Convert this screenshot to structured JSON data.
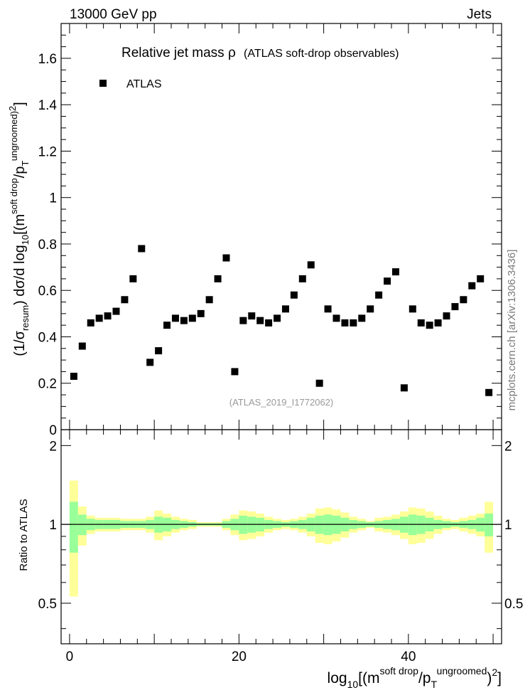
{
  "header": {
    "beam": "13000 GeV pp",
    "process": "Jets",
    "title_main": "Relative jet mass  ρ",
    "title_sub": "(ATLAS soft-drop observables)",
    "analysis_id": "(ATLAS_2019_I1772062)",
    "side_credit": "mcplots.cern.ch [arXiv:1306.3436]"
  },
  "chart_data": [
    {
      "type": "scatter",
      "title": "Relative jet mass  ρ (ATLAS soft-drop observables)",
      "legend": {
        "entries": [
          "ATLAS"
        ],
        "position": "top-left"
      },
      "xlim": [
        -1,
        51
      ],
      "ylim": [
        0,
        1.75
      ],
      "y_ticks": [
        0,
        0.2,
        0.4,
        0.6,
        0.8,
        1,
        1.2,
        1.4,
        1.6
      ],
      "y_tick_labels": [
        "0",
        "0.2",
        "0.4",
        "0.6",
        "0.8",
        "1",
        "1.2",
        "1.4",
        "1.6"
      ],
      "series": [
        {
          "name": "ATLAS",
          "marker": "square",
          "color": "#000000",
          "x": [
            0.5,
            1.5,
            2.5,
            3.5,
            4.5,
            5.5,
            6.5,
            7.5,
            8.5,
            9.5,
            10.5,
            11.5,
            12.5,
            13.5,
            14.5,
            15.5,
            16.5,
            17.5,
            18.5,
            19.5,
            20.5,
            21.5,
            22.5,
            23.5,
            24.5,
            25.5,
            26.5,
            27.5,
            28.5,
            29.5,
            30.5,
            31.5,
            32.5,
            33.5,
            34.5,
            35.5,
            36.5,
            37.5,
            38.5,
            39.5,
            40.5,
            41.5,
            42.5,
            43.5,
            44.5,
            45.5,
            46.5,
            47.5,
            48.5,
            49.5
          ],
          "y": [
            0.23,
            0.36,
            0.46,
            0.48,
            0.49,
            0.51,
            0.56,
            0.65,
            0.78,
            0.29,
            0.34,
            0.45,
            0.48,
            0.47,
            0.48,
            0.5,
            0.56,
            0.65,
            0.74,
            0.25,
            0.47,
            0.49,
            0.47,
            0.46,
            0.48,
            0.52,
            0.58,
            0.65,
            0.71,
            0.2,
            0.52,
            0.48,
            0.46,
            0.46,
            0.48,
            0.52,
            0.58,
            0.64,
            0.68,
            0.18,
            0.52,
            0.46,
            0.45,
            0.46,
            0.49,
            0.53,
            0.56,
            0.62,
            0.65,
            0.16
          ]
        }
      ]
    },
    {
      "type": "area",
      "ylabel": "Ratio to ATLAS",
      "xlabel": "log10[(m soft drop / pT ungroomed)^2]",
      "xlim": [
        -1,
        51
      ],
      "ylim": [
        0.35,
        2.3
      ],
      "x_ticks": [
        0,
        20,
        40
      ],
      "x_tick_labels": [
        "0",
        "20",
        "40"
      ],
      "y_ticks": [
        0.5,
        1,
        2
      ],
      "y_tick_labels": [
        "0.5",
        "1",
        "2"
      ],
      "reference_line": 1,
      "bands": {
        "x_edges": [
          0,
          1,
          2,
          3,
          4,
          5,
          6,
          7,
          8,
          9,
          10,
          11,
          12,
          13,
          14,
          15,
          16,
          17,
          18,
          19,
          20,
          21,
          22,
          23,
          24,
          25,
          26,
          27,
          28,
          29,
          30,
          31,
          32,
          33,
          34,
          35,
          36,
          37,
          38,
          39,
          40,
          41,
          42,
          43,
          44,
          45,
          46,
          47,
          48,
          49,
          50
        ],
        "outer_color": "#ffff99",
        "inner_color": "#99ff99",
        "outer_err": [
          0.47,
          0.17,
          0.08,
          0.06,
          0.06,
          0.06,
          0.05,
          0.05,
          0.05,
          0.07,
          0.13,
          0.1,
          0.07,
          0.05,
          0.04,
          0.02,
          0.02,
          0.02,
          0.05,
          0.09,
          0.13,
          0.12,
          0.1,
          0.07,
          0.05,
          0.04,
          0.05,
          0.07,
          0.1,
          0.15,
          0.16,
          0.14,
          0.11,
          0.07,
          0.05,
          0.03,
          0.06,
          0.07,
          0.09,
          0.12,
          0.16,
          0.15,
          0.12,
          0.08,
          0.05,
          0.04,
          0.06,
          0.08,
          0.1,
          0.22
        ],
        "inner_err": [
          0.22,
          0.09,
          0.05,
          0.04,
          0.04,
          0.04,
          0.03,
          0.03,
          0.03,
          0.04,
          0.07,
          0.06,
          0.04,
          0.03,
          0.02,
          0.01,
          0.01,
          0.01,
          0.03,
          0.05,
          0.08,
          0.07,
          0.06,
          0.04,
          0.03,
          0.02,
          0.03,
          0.04,
          0.06,
          0.08,
          0.09,
          0.08,
          0.06,
          0.04,
          0.03,
          0.02,
          0.03,
          0.04,
          0.05,
          0.07,
          0.09,
          0.08,
          0.06,
          0.04,
          0.03,
          0.02,
          0.03,
          0.04,
          0.06,
          0.1
        ]
      }
    }
  ]
}
